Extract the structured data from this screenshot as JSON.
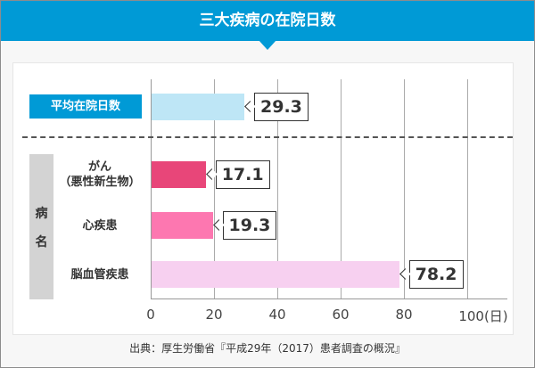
{
  "title": "三大疾病の在院日数",
  "source": "出典：厚生労働省『平成29年（2017）患者調査の概況』",
  "chart_data": {
    "type": "bar",
    "orientation": "horizontal",
    "category_axis_label": [
      "病",
      "名"
    ],
    "categories": [
      "平均在院日数",
      "がん（悪性新生物）",
      "心疾患",
      "脳血管疾患"
    ],
    "category_lines": [
      [
        "平均在院日数"
      ],
      [
        "がん",
        "（悪性新生物）"
      ],
      [
        "心疾患"
      ],
      [
        "脳血管疾患"
      ]
    ],
    "values": [
      29.3,
      17.1,
      19.3,
      78.2
    ],
    "value_labels": [
      "29.3",
      "17.1",
      "19.3",
      "78.2"
    ],
    "colors": [
      "#bee6f6",
      "#e84679",
      "#fd77b0",
      "#f7d0f0"
    ],
    "xlim": [
      0,
      100
    ],
    "xticks": [
      "0",
      "20",
      "40",
      "60",
      "80",
      "100(日)"
    ],
    "xtick_values": [
      0,
      20,
      40,
      60,
      80,
      100
    ],
    "grid": true,
    "accent": "#009ad6"
  }
}
